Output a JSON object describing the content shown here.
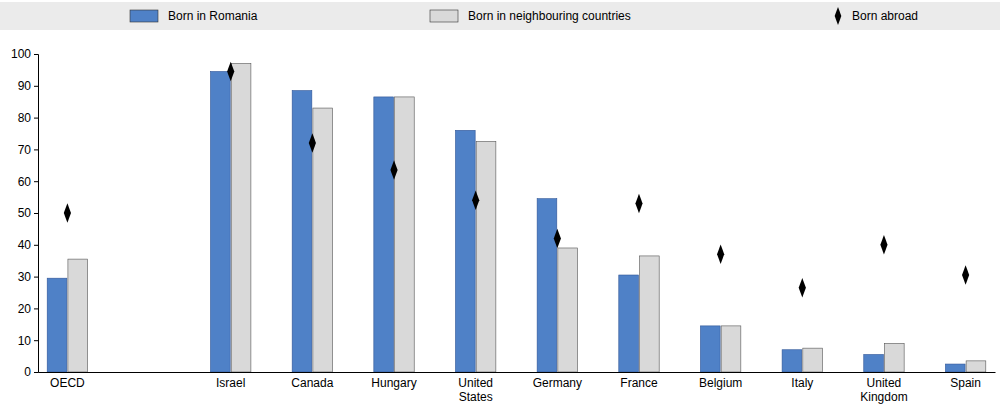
{
  "chart_data": {
    "type": "bar",
    "categories": [
      "OECD",
      null,
      "Israel",
      "Canada",
      "Hungary",
      "United States",
      "Germany",
      "France",
      "Belgium",
      "Italy",
      "United Kingdom",
      "Spain"
    ],
    "series": [
      {
        "name": "Born in Romania",
        "type": "bar",
        "color": "#4f81c7",
        "values": [
          29.5,
          null,
          94.5,
          88.5,
          86.5,
          76,
          54.5,
          30.5,
          14.5,
          7,
          5.5,
          2.5
        ]
      },
      {
        "name": "Born in neighbouring countries",
        "type": "bar",
        "color": "#d9d9d9",
        "values": [
          35.5,
          null,
          97,
          83,
          86.5,
          72.5,
          39,
          36.5,
          14.5,
          7.5,
          9,
          3.5
        ]
      },
      {
        "name": "Born abroad",
        "type": "scatter",
        "marker": "diamond",
        "color": "#000000",
        "values": [
          50,
          null,
          94.5,
          72,
          63.5,
          54,
          42,
          53,
          37,
          26.5,
          40,
          30.5
        ]
      }
    ],
    "ylim": [
      0,
      100
    ],
    "yticks": [
      0,
      10,
      20,
      30,
      40,
      50,
      60,
      70,
      80,
      90,
      100
    ],
    "grid": false,
    "legend": "top"
  }
}
